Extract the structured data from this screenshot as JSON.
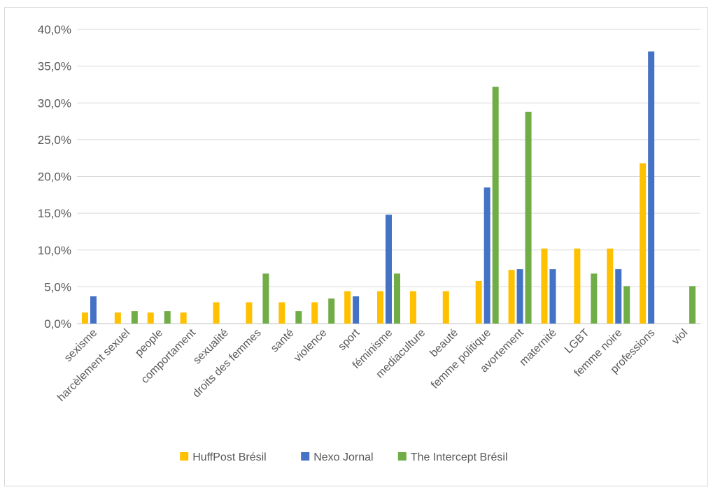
{
  "chart_data": {
    "type": "bar",
    "title": "",
    "xlabel": "",
    "ylabel": "",
    "ylim": [
      0,
      40
    ],
    "ytick_step": 5,
    "ytick_format": "percent_comma_1",
    "grid": true,
    "legend_position": "bottom",
    "categories": [
      "sexisme",
      "harcèlement sexuel",
      "people",
      "comportament",
      "sexualité",
      "droits des femmes",
      "santé",
      "violence",
      "sport",
      "féminisme",
      "mediaculture",
      "beauté",
      "femme politique",
      "avortement",
      "maternité",
      "LGBT",
      "femme noire",
      "professions",
      "viol"
    ],
    "series": [
      {
        "name": "HuffPost Brésil",
        "color": "#ffc000",
        "values": [
          1.5,
          1.5,
          1.5,
          1.5,
          2.9,
          2.9,
          2.9,
          2.9,
          4.4,
          4.4,
          4.4,
          4.4,
          5.8,
          7.3,
          10.2,
          10.2,
          10.2,
          21.8,
          0
        ]
      },
      {
        "name": "Nexo Jornal",
        "color": "#4472c4",
        "values": [
          3.7,
          0,
          0,
          0,
          0,
          0,
          0,
          0,
          3.7,
          14.8,
          0,
          0,
          18.5,
          7.4,
          7.4,
          0,
          7.4,
          37.0,
          0
        ]
      },
      {
        "name": "The Intercept Brésil",
        "color": "#70ad47",
        "values": [
          0,
          1.7,
          1.7,
          0,
          0,
          6.8,
          1.7,
          3.4,
          0,
          6.8,
          0,
          0,
          32.2,
          28.8,
          0,
          6.8,
          5.1,
          0,
          5.1
        ]
      }
    ]
  }
}
